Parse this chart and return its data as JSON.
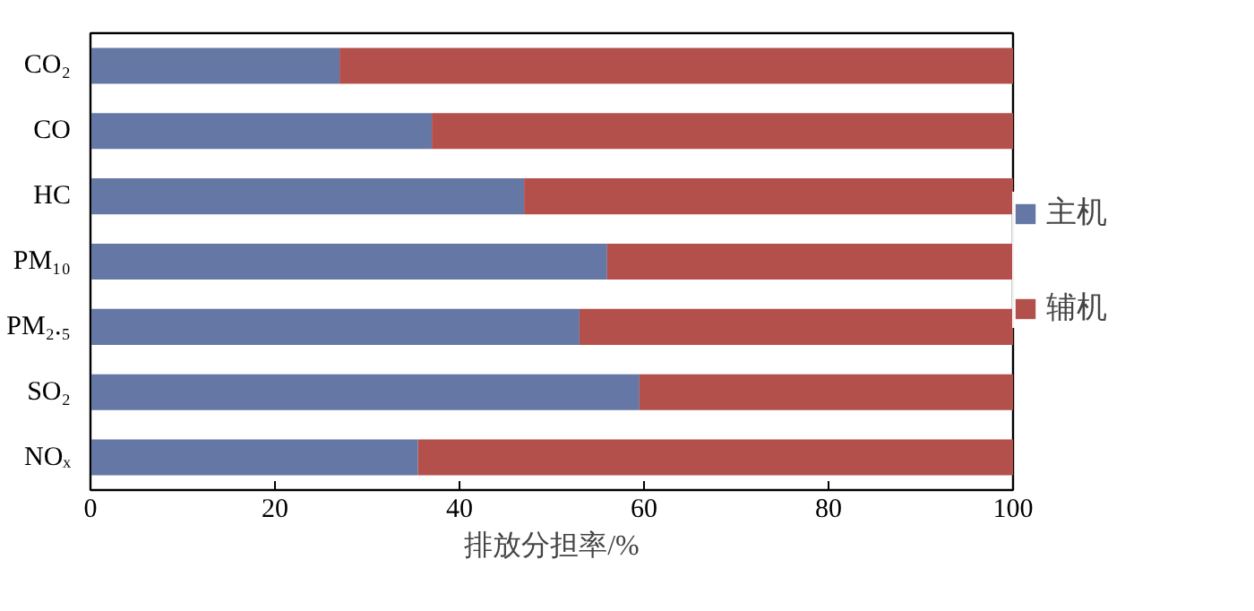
{
  "chart_data": {
    "type": "bar",
    "orientation": "horizontal",
    "stacked": true,
    "categories": [
      "CO₂",
      "CO",
      "HC",
      "PM₁₀",
      "PM₂.₅",
      "SO₂",
      "NOₓ"
    ],
    "series": [
      {
        "name": "主机",
        "color": "#6577a5",
        "values": [
          27,
          37,
          47,
          56,
          53,
          59.5,
          35.5
        ]
      },
      {
        "name": "辅机",
        "color": "#b4504b",
        "values": [
          73,
          63,
          53,
          44,
          47,
          40.5,
          64.5
        ]
      }
    ],
    "xlabel": "排放分担率/%",
    "xlim": [
      0,
      100
    ],
    "xticks": [
      0,
      20,
      40,
      60,
      80,
      100
    ],
    "grid": false,
    "legend": "right"
  }
}
